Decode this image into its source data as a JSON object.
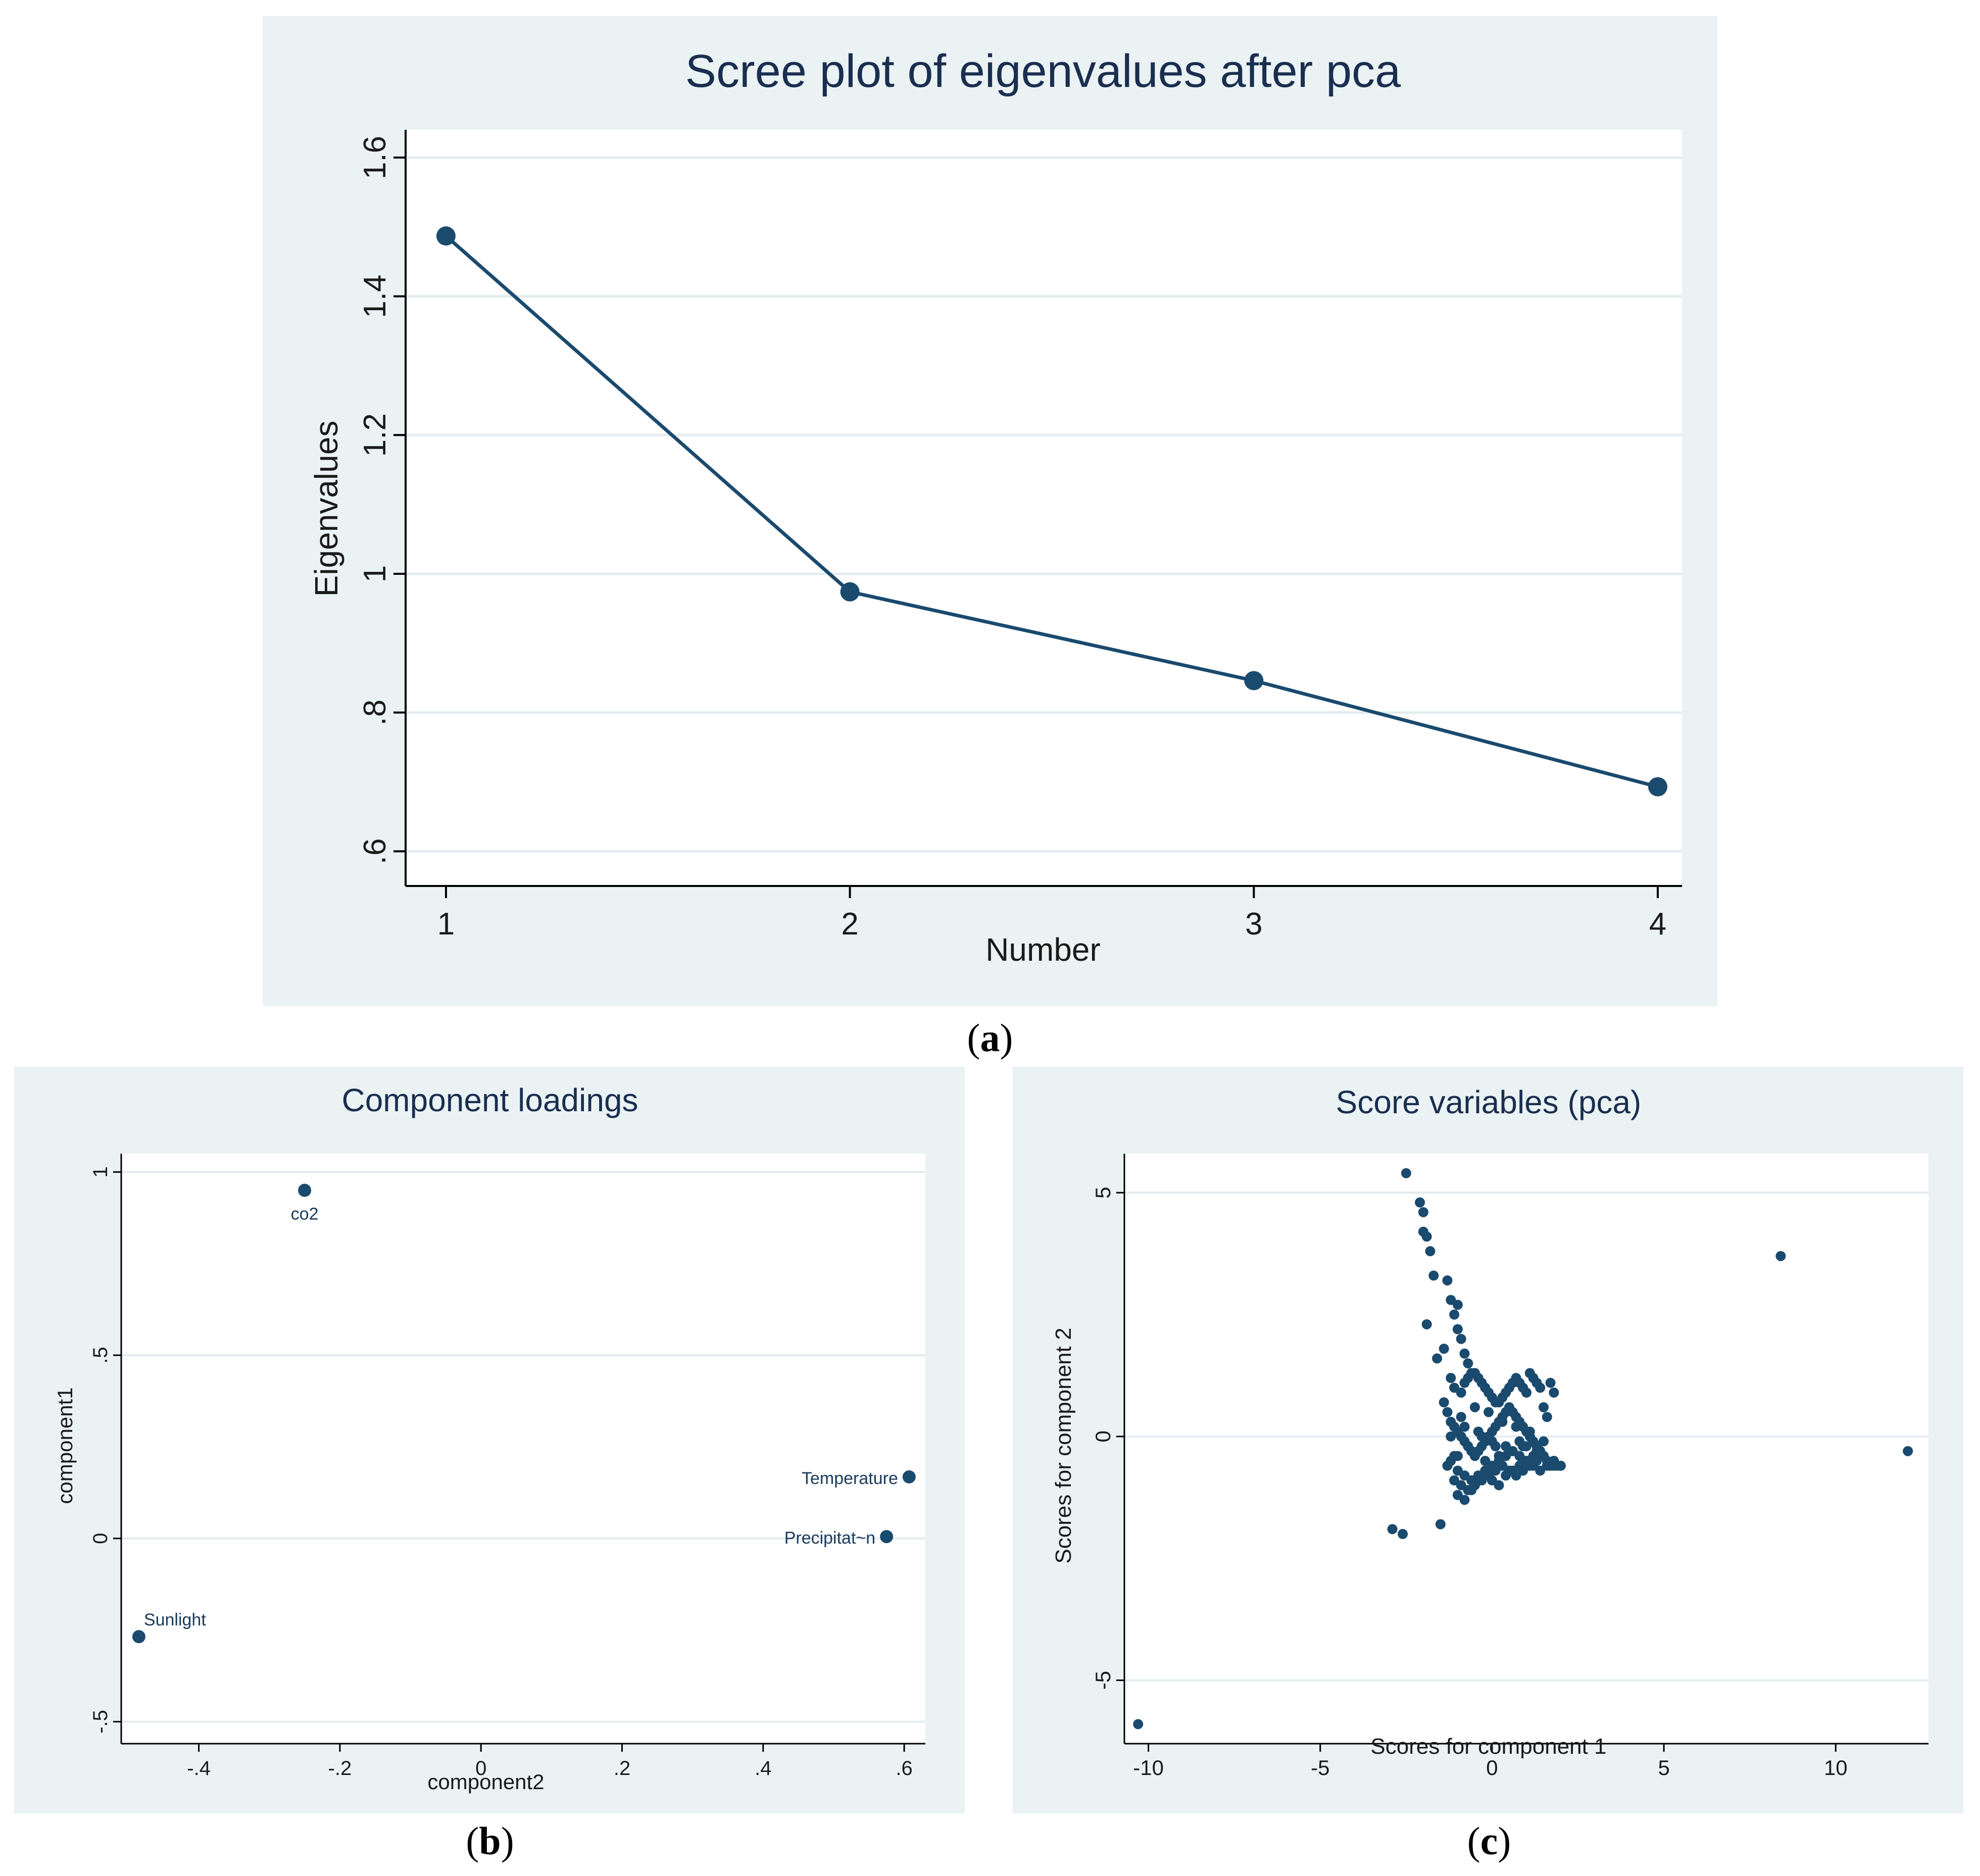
{
  "colors": {
    "panel_bg": "#eaf2f3",
    "plot_bg": "#ffffff",
    "marker": "#1a4a6e",
    "grid": "#e3ecee",
    "title": "#1a2e50"
  },
  "captions": {
    "a": "a",
    "b": "b",
    "c": "c"
  },
  "chart_data": [
    {
      "id": "a",
      "type": "line",
      "title": "Scree plot of eigenvalues after pca",
      "xlabel": "Number",
      "ylabel": "Eigenvalues",
      "x": [
        1,
        2,
        3,
        4
      ],
      "y": [
        1.487,
        0.974,
        0.846,
        0.693
      ],
      "xlim": [
        0.9,
        4.06
      ],
      "ylim": [
        0.55,
        1.64
      ],
      "xticks": [
        1,
        2,
        3,
        4
      ],
      "xtick_labels": [
        "1",
        "2",
        "3",
        "4"
      ],
      "yticks": [
        0.6,
        0.8,
        1.0,
        1.2,
        1.4,
        1.6
      ],
      "ytick_labels": [
        ".6",
        ".8",
        "1",
        "1.2",
        "1.4",
        "1.6"
      ],
      "grid": true
    },
    {
      "id": "b",
      "type": "scatter",
      "title": "Component loadings",
      "xlabel": "component2",
      "ylabel": "component1",
      "points": [
        {
          "label": "co2",
          "x": -0.25,
          "y": 0.95
        },
        {
          "label": "Temperature",
          "x": 0.607,
          "y": 0.168
        },
        {
          "label": "Precipitat~n",
          "x": 0.575,
          "y": 0.005
        },
        {
          "label": "Sunlight",
          "x": -0.485,
          "y": -0.268
        }
      ],
      "xlim": [
        -0.51,
        0.63
      ],
      "ylim": [
        -0.56,
        1.05
      ],
      "xticks": [
        -0.4,
        -0.2,
        0,
        0.2,
        0.4,
        0.6
      ],
      "xtick_labels": [
        "-.4",
        "-.2",
        "0",
        ".2",
        ".4",
        ".6"
      ],
      "yticks": [
        -0.5,
        0,
        0.5,
        1
      ],
      "ytick_labels": [
        "-.5",
        "0",
        ".5",
        "1"
      ],
      "grid": true
    },
    {
      "id": "c",
      "type": "scatter",
      "title": "Score variables (pca)",
      "xlabel": "Scores for component 1",
      "ylabel": "Scores for component 2",
      "x": [
        -2.5,
        8.4,
        12.1,
        -10.3,
        -2.1,
        -2.0,
        -1.9,
        -1.8,
        -2.0,
        -1.7,
        -1.3,
        -1.2,
        -1.1,
        -1.0,
        -1.0,
        -0.9,
        -0.8,
        -0.7,
        -0.6,
        -1.4,
        -1.9,
        -2.9,
        -2.6,
        -1.5,
        -1.6,
        -1.2,
        -1.1,
        -0.9,
        -0.8,
        -0.7,
        -0.6,
        -0.5,
        -0.4,
        -0.3,
        -0.2,
        -0.1,
        0.0,
        0.1,
        0.2,
        0.3,
        0.4,
        0.5,
        0.6,
        0.7,
        0.8,
        0.9,
        1.0,
        1.1,
        1.2,
        1.3,
        1.4,
        1.5,
        1.6,
        1.7,
        1.8,
        1.9,
        2.0,
        -1.4,
        -1.3,
        -1.2,
        -1.1,
        -1.0,
        -0.9,
        -0.8,
        -0.7,
        -0.6,
        -0.5,
        -0.4,
        -0.3,
        -0.2,
        -0.1,
        0.0,
        0.1,
        0.2,
        0.3,
        0.4,
        0.5,
        0.6,
        0.7,
        0.8,
        0.9,
        1.0,
        1.1,
        1.2,
        1.3,
        1.4,
        1.5,
        1.6,
        1.7,
        -1.2,
        -1.0,
        -0.8,
        -0.6,
        -0.4,
        -0.2,
        0.0,
        0.2,
        0.4,
        0.6,
        0.8,
        1.0,
        1.2,
        1.4,
        1.6,
        1.8,
        -1.1,
        -0.9,
        -0.7,
        -0.5,
        -0.3,
        -0.1,
        0.1,
        0.3,
        0.5,
        0.7,
        0.9,
        1.1,
        1.3,
        1.5,
        -1.0,
        -0.8,
        -0.6,
        -0.4,
        -0.2,
        0.0,
        0.2,
        0.4,
        0.6,
        0.8,
        1.0,
        1.2,
        -0.9,
        -0.5,
        -0.1,
        0.3,
        0.7,
        1.1,
        1.5,
        -1.1,
        -0.7,
        -0.3,
        0.1,
        0.5,
        0.9,
        1.3,
        -1.2,
        -0.8,
        -0.4,
        0.0,
        0.4,
        0.8,
        -1.3,
        -1.0,
        -0.6,
        -0.2,
        0.2,
        0.6,
        1.0,
        1.4,
        1.8
      ],
      "y": [
        5.4,
        3.7,
        -0.3,
        -5.9,
        4.8,
        4.2,
        4.1,
        3.8,
        4.6,
        3.3,
        3.2,
        2.8,
        2.5,
        2.2,
        2.7,
        2.0,
        1.7,
        1.5,
        1.3,
        1.8,
        2.3,
        -1.9,
        -2.0,
        -1.8,
        1.6,
        1.2,
        1.0,
        0.9,
        1.1,
        1.2,
        1.3,
        1.3,
        1.2,
        1.1,
        1.0,
        0.9,
        0.8,
        0.7,
        0.7,
        0.8,
        0.9,
        1.0,
        1.1,
        1.2,
        1.1,
        1.0,
        0.9,
        1.3,
        1.2,
        1.1,
        1.0,
        0.6,
        0.4,
        1.1,
        0.9,
        -0.6,
        -0.6,
        0.7,
        0.5,
        0.3,
        0.2,
        0.1,
        0.0,
        -0.1,
        -0.2,
        -0.3,
        -0.4,
        -0.3,
        -0.2,
        -0.1,
        0.0,
        0.1,
        0.2,
        0.3,
        0.4,
        0.5,
        0.6,
        0.5,
        0.4,
        0.3,
        0.2,
        0.1,
        0.0,
        -0.1,
        -0.2,
        -0.3,
        -0.4,
        -0.5,
        -0.6,
        -0.5,
        -0.7,
        -0.8,
        -0.9,
        -0.8,
        -0.7,
        -0.6,
        -0.5,
        -0.4,
        -0.3,
        -0.4,
        -0.5,
        -0.6,
        -0.7,
        -0.6,
        -0.5,
        -0.9,
        -1.0,
        -1.1,
        -1.0,
        -0.9,
        -0.8,
        -0.7,
        -0.6,
        -0.7,
        -0.8,
        -0.7,
        -0.6,
        -0.5,
        -0.4,
        -1.2,
        -1.3,
        -1.1,
        -0.9,
        -0.8,
        -0.9,
        -1.0,
        -0.8,
        -0.7,
        -0.6,
        -0.5,
        -0.4,
        0.4,
        0.6,
        0.5,
        0.3,
        0.2,
        0.1,
        -0.1,
        -0.4,
        -0.2,
        0.0,
        -0.2,
        -0.3,
        -0.2,
        -0.3,
        0.0,
        0.2,
        0.1,
        -0.1,
        -0.2,
        -0.1,
        -0.6,
        -0.4,
        -0.3,
        -0.5,
        -0.4,
        -0.3,
        -0.2,
        -0.3,
        -0.6
      ],
      "xlim": [
        -10.7,
        12.7
      ],
      "ylim": [
        -6.3,
        5.8
      ],
      "xticks": [
        -10,
        -5,
        0,
        5,
        10
      ],
      "xtick_labels": [
        "-10",
        "-5",
        "0",
        "5",
        "10"
      ],
      "yticks": [
        -5,
        0,
        5
      ],
      "ytick_labels": [
        "-5",
        "0",
        "5"
      ],
      "grid": true
    }
  ]
}
